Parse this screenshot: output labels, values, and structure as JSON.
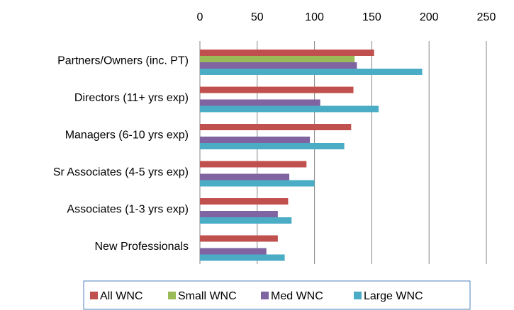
{
  "chart_data": {
    "type": "hbar",
    "categories": [
      "Partners/Owners (inc. PT)",
      "Directors (11+ yrs exp)",
      "Managers (6-10 yrs exp)",
      "Sr Associates (4-5 yrs exp)",
      "Associates (1-3 yrs exp)",
      "New Professionals"
    ],
    "series": [
      {
        "name": "All WNC",
        "color": "#c0504d",
        "values": [
          152,
          134,
          132,
          93,
          77,
          68
        ]
      },
      {
        "name": "Small WNC",
        "color": "#9bbb59",
        "values": [
          135,
          null,
          null,
          null,
          null,
          null
        ]
      },
      {
        "name": "Med WNC",
        "color": "#8064a2",
        "values": [
          137,
          105,
          96,
          78,
          68,
          58
        ]
      },
      {
        "name": "Large WNC",
        "color": "#4bacc6",
        "values": [
          194,
          156,
          126,
          100,
          80,
          74
        ]
      }
    ],
    "xlim": [
      0,
      250
    ],
    "xticks": [
      0,
      50,
      100,
      150,
      200,
      250
    ],
    "grid": true,
    "legend": "bottom"
  }
}
